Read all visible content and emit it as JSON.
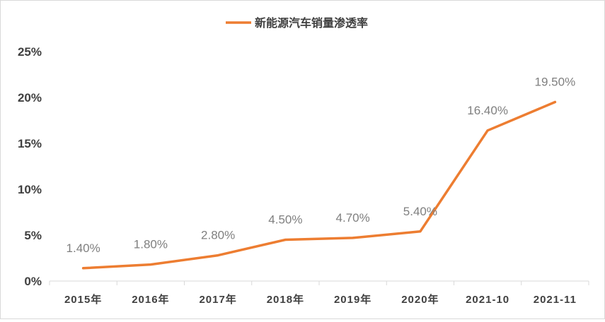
{
  "chart_data": {
    "type": "line",
    "categories": [
      "2015年",
      "2016年",
      "2017年",
      "2018年",
      "2019年",
      "2020年",
      "2021-10",
      "2021-11"
    ],
    "series": [
      {
        "name": "新能源汽车销量渗透率",
        "values": [
          1.4,
          1.8,
          2.8,
          4.5,
          4.7,
          5.4,
          16.4,
          19.5
        ],
        "labels": [
          "1.40%",
          "1.80%",
          "2.80%",
          "4.50%",
          "4.70%",
          "5.40%",
          "16.40%",
          "19.50%"
        ],
        "color": "#ED7D31"
      }
    ],
    "yticks": [
      "0%",
      "5%",
      "10%",
      "15%",
      "20%",
      "25%"
    ],
    "ylim": [
      0,
      25
    ],
    "legend_position": "top",
    "grid": false
  }
}
